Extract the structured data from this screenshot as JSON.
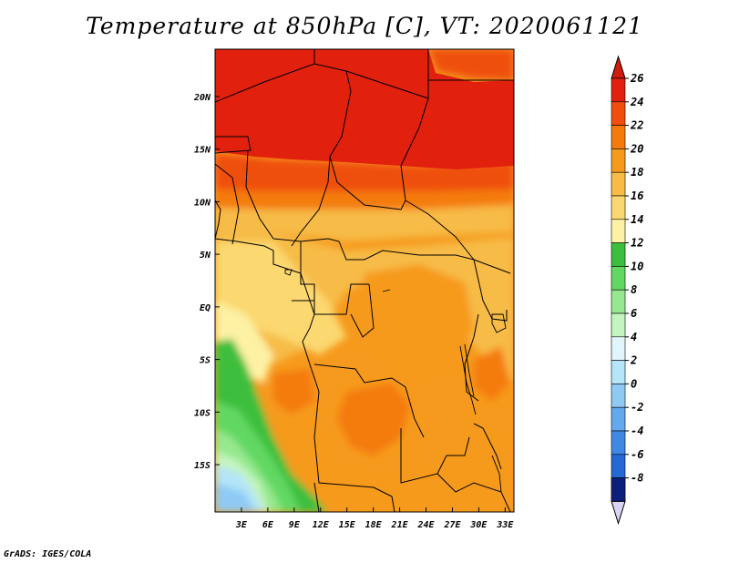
{
  "title": "Temperature at 850hPa [C], VT: 2020061121",
  "credit": "GrADS: IGES/COLA",
  "map": {
    "lon_range": [
      0,
      34
    ],
    "lat_range": [
      -19.5,
      24.5
    ],
    "lon_ticks": [
      {
        "value": 3,
        "label": "3E"
      },
      {
        "value": 6,
        "label": "6E"
      },
      {
        "value": 9,
        "label": "9E"
      },
      {
        "value": 12,
        "label": "12E"
      },
      {
        "value": 15,
        "label": "15E"
      },
      {
        "value": 18,
        "label": "18E"
      },
      {
        "value": 21,
        "label": "21E"
      },
      {
        "value": 24,
        "label": "24E"
      },
      {
        "value": 27,
        "label": "27E"
      },
      {
        "value": 30,
        "label": "30E"
      },
      {
        "value": 33,
        "label": "33E"
      }
    ],
    "lat_ticks": [
      {
        "value": 20,
        "label": "20N"
      },
      {
        "value": 15,
        "label": "15N"
      },
      {
        "value": 10,
        "label": "10N"
      },
      {
        "value": 5,
        "label": "5N"
      },
      {
        "value": 0,
        "label": "EQ"
      },
      {
        "value": -5,
        "label": "5S"
      },
      {
        "value": -10,
        "label": "10S"
      },
      {
        "value": -15,
        "label": "15S"
      }
    ]
  },
  "colorbar": {
    "levels": [
      {
        "label": "26",
        "color": "#e1200e"
      },
      {
        "label": "24",
        "color": "#ef4f0b"
      },
      {
        "label": "22",
        "color": "#f47b0b"
      },
      {
        "label": "20",
        "color": "#f69a1d"
      },
      {
        "label": "18",
        "color": "#f7bb46"
      },
      {
        "label": "16",
        "color": "#fbd86f"
      },
      {
        "label": "14",
        "color": "#fdf1a4"
      },
      {
        "label": "12",
        "color": "#3cbf3c"
      },
      {
        "label": "10",
        "color": "#62d863"
      },
      {
        "label": "8",
        "color": "#95e88e"
      },
      {
        "label": "6",
        "color": "#c4f4c0"
      },
      {
        "label": "4",
        "color": "#e0f6fb"
      },
      {
        "label": "2",
        "color": "#b4e5f8"
      },
      {
        "label": "0",
        "color": "#8ecaf4"
      },
      {
        "label": "-2",
        "color": "#63a9ee"
      },
      {
        "label": "-4",
        "color": "#3f88e3"
      },
      {
        "label": "-6",
        "color": "#2468d6"
      },
      {
        "label": "-8",
        "color": "#1345b8"
      }
    ],
    "top_color": "#d01c0f",
    "bottom_color": "#0c1f7a",
    "bottom_arrow_color": "#d9d5f2"
  }
}
